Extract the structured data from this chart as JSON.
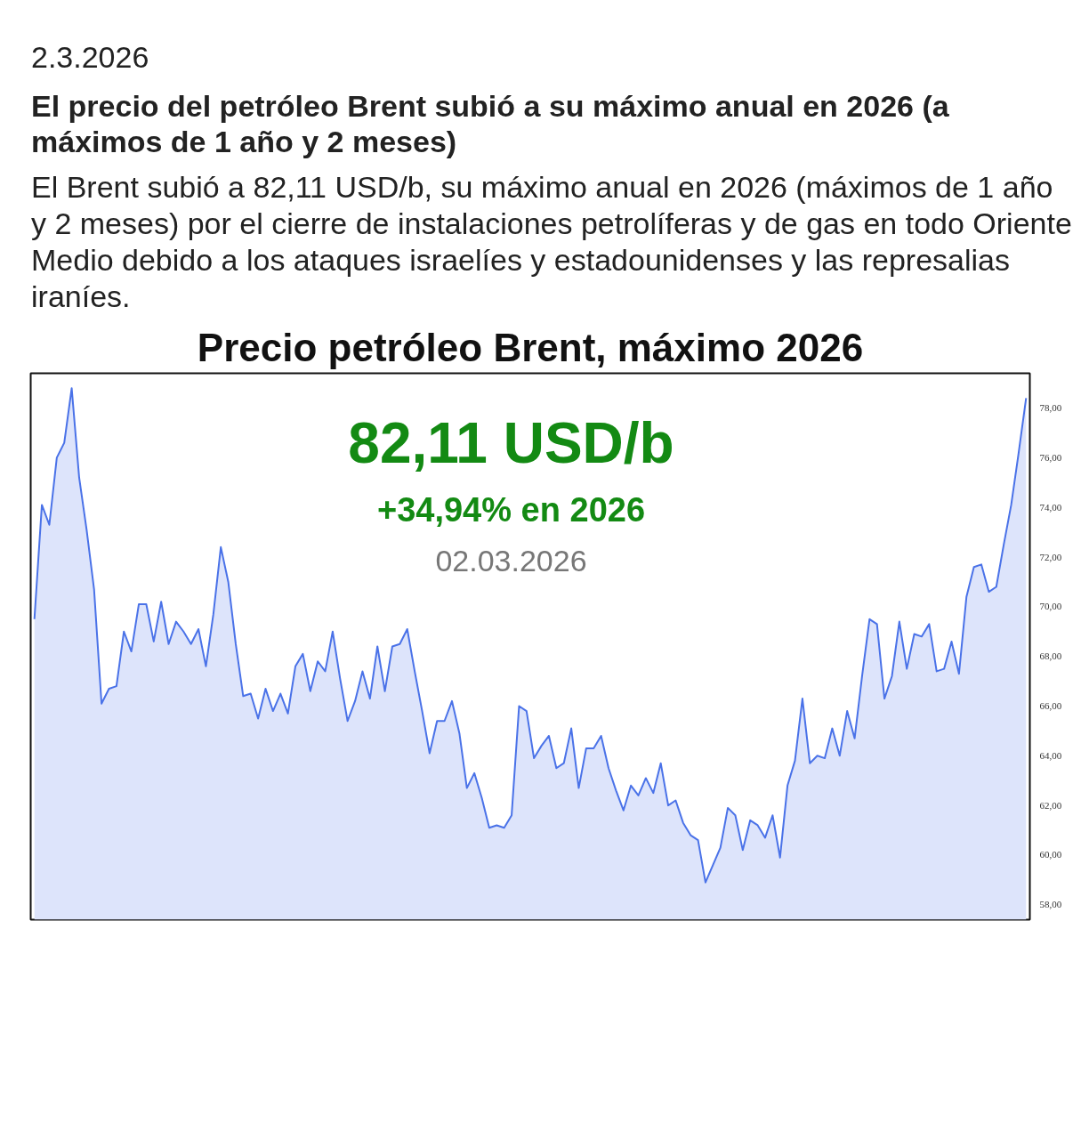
{
  "chart_data": {
    "type": "area",
    "title": "Precio petróleo Brent, máximo 2026",
    "annotations": [
      "2.3.2026",
      "El precio del petróleo Brent subió a su máximo anual en 2026 (a máximos de 1 año y 2 meses)",
      "El Brent subió a 82,11 USD/b, su máximo anual en 2026 (máximos de 1 año y 2 meses) por el cierre de instalaciones petrolíferas y de gas en todo Oriente Medio debido a los ataques israelíes y estadounidenses y las represalias iraníes.",
      "82,11 USD/b",
      "+34,94% en 2026",
      "02.03.2026"
    ],
    "categories": [
      null,
      null,
      null,
      null,
      null,
      null,
      null,
      null,
      null,
      null,
      null,
      null,
      null,
      null,
      null,
      null,
      null,
      null,
      null,
      null,
      null,
      null,
      null,
      null,
      null,
      null,
      null,
      null,
      null,
      null,
      null,
      null,
      null,
      null,
      null,
      null,
      null,
      null,
      null,
      null,
      null,
      null,
      null,
      null,
      null,
      null,
      null,
      null,
      null,
      null,
      null,
      null,
      null,
      null,
      null,
      null,
      null,
      null,
      null,
      null,
      null,
      null,
      null,
      null,
      null,
      null,
      null,
      null,
      null,
      null,
      null,
      null,
      null,
      null,
      null,
      null,
      null,
      null,
      null,
      null,
      null,
      null,
      null,
      null,
      null,
      null,
      null,
      null,
      null,
      null,
      null,
      null,
      null,
      null,
      null,
      null,
      null,
      null,
      null,
      null,
      null,
      null,
      null,
      null,
      null,
      null,
      null,
      null,
      null,
      null,
      null,
      null,
      null,
      null,
      null,
      null,
      null,
      null,
      null,
      null,
      null,
      null,
      null,
      null,
      null,
      null,
      null,
      null,
      null,
      null,
      null,
      null,
      null,
      null
    ],
    "series": [
      {
        "color": "#4a72e8",
        "values": [
          69.5,
          74.1,
          73.3,
          76.0,
          76.6,
          78.8,
          75.2,
          73.1,
          70.7,
          66.1,
          66.7,
          66.8,
          69.0,
          68.2,
          70.1,
          70.1,
          68.6,
          70.2,
          68.5,
          69.4,
          69.0,
          68.5,
          69.1,
          67.6,
          69.7,
          72.4,
          71.0,
          68.5,
          66.4,
          66.5,
          65.5,
          66.7,
          65.8,
          66.5,
          65.7,
          67.6,
          68.1,
          66.6,
          67.8,
          67.4,
          69.0,
          67.1,
          65.4,
          66.2,
          67.4,
          66.3,
          68.4,
          66.6,
          68.4,
          68.5,
          69.1,
          67.4,
          65.8,
          64.1,
          65.4,
          65.4,
          66.2,
          64.9,
          62.7,
          63.3,
          62.3,
          61.1,
          61.2,
          61.1,
          61.6,
          66.0,
          65.8,
          63.9,
          64.4,
          64.8,
          63.5,
          63.7,
          65.1,
          62.7,
          64.3,
          64.3,
          64.8,
          63.5,
          62.6,
          61.8,
          62.8,
          62.4,
          63.1,
          62.5,
          63.7,
          62.0,
          62.2,
          61.3,
          60.8,
          60.6,
          58.9,
          59.6,
          60.3,
          61.9,
          61.6,
          60.2,
          61.4,
          61.2,
          60.7,
          61.6,
          59.9,
          62.8,
          63.8,
          66.3,
          63.7,
          64.0,
          63.9,
          65.1,
          64.0,
          65.8,
          64.7,
          67.2,
          69.5,
          69.3,
          66.3,
          67.2,
          69.4,
          67.5,
          68.9,
          68.8,
          69.3,
          67.4,
          67.5,
          68.6,
          67.3,
          70.4,
          71.6,
          71.7,
          70.6,
          70.8,
          72.5,
          74.1,
          76.2,
          78.4
        ]
      }
    ],
    "ylim": [
      57.4,
      79.4
    ],
    "yticks": [
      {
        "value": 58,
        "label": "58,00"
      },
      {
        "value": 60,
        "label": "60,00"
      },
      {
        "value": 62,
        "label": "62,00"
      },
      {
        "value": 64,
        "label": "64,00"
      },
      {
        "value": 66,
        "label": "66,00"
      },
      {
        "value": 68,
        "label": "68,00"
      },
      {
        "value": 70,
        "label": "70,00"
      },
      {
        "value": 72,
        "label": "72,00"
      },
      {
        "value": 74,
        "label": "74,00"
      },
      {
        "value": 76,
        "label": "76,00"
      },
      {
        "value": 78,
        "label": "78,00"
      }
    ],
    "tick_labels": "y"
  }
}
